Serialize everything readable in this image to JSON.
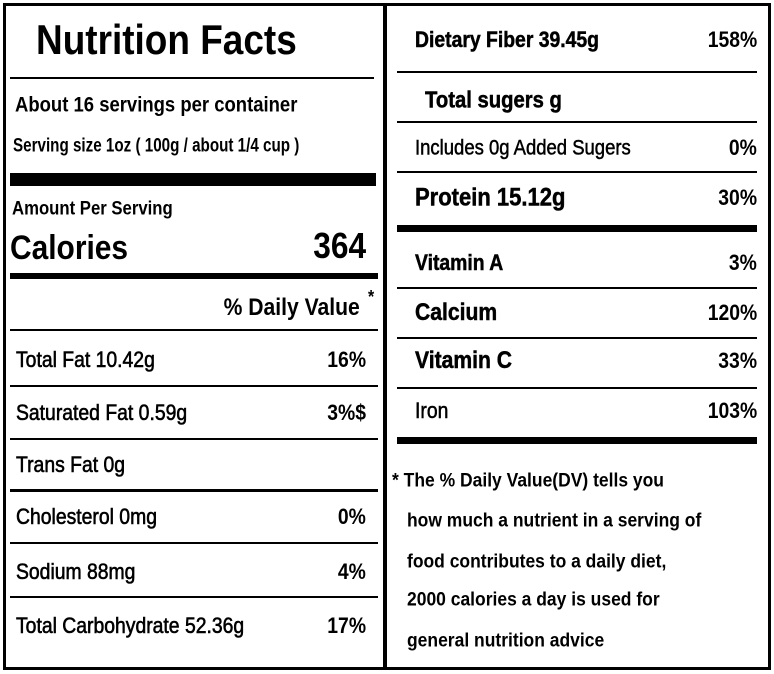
{
  "title": "Nutrition Facts",
  "servings": "About 16 servings per container",
  "serving_size": "Serving size 1oz ( 100g / about 1/4 cup )",
  "amount_per_serving": "Amount Per Serving",
  "calories": {
    "label": "Calories",
    "value": "364"
  },
  "daily_value_header": {
    "label": "% Daily Value",
    "mark": "*"
  },
  "left_rows": [
    {
      "label": "Total Fat 10.42g",
      "dv": "16%"
    },
    {
      "label": "Saturated Fat 0.59g",
      "dv": "3%$"
    },
    {
      "label": "Trans Fat 0g"
    },
    {
      "label": "Cholesterol  0mg",
      "dv": "0%"
    },
    {
      "label": "Sodium  88mg",
      "dv": "4%"
    },
    {
      "label": "Total Carbohydrate  52.36g",
      "dv": "17%"
    }
  ],
  "right_rows": [
    {
      "label": "Dietary Fiber 39.45g",
      "dv": "158%"
    },
    {
      "label": "Total sugers g"
    },
    {
      "label": "Includes 0g Added Sugers",
      "dv": "0%"
    },
    {
      "label": "Protein 15.12g",
      "dv": "30%"
    },
    {
      "label": "Vitamin A",
      "dv": "3%"
    },
    {
      "label": "Calcium",
      "dv": "120%"
    },
    {
      "label": "Vitamin C",
      "dv": "33%"
    },
    {
      "label": "Iron",
      "dv": "103%"
    }
  ],
  "footnote": [
    "* The % Daily Value(DV)  tells you",
    "how much a nutrient in a serving of",
    "food contributes to a daily diet,",
    "2000 calories a day is used for",
    "general nutrition advice"
  ]
}
